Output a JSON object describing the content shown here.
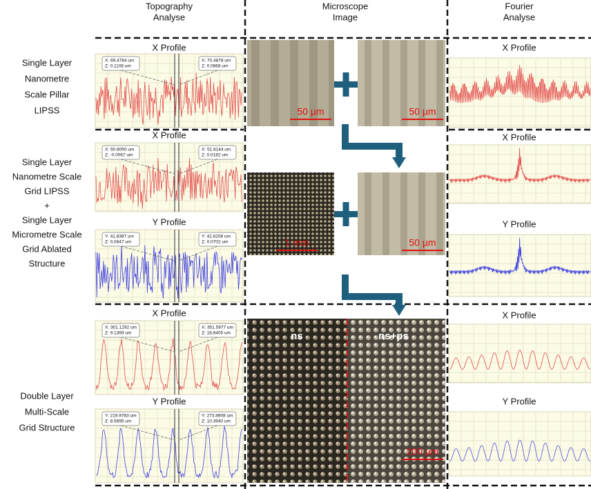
{
  "headers": [
    [
      "Topography",
      "Analyse"
    ],
    [
      "Microscope",
      "Image"
    ],
    [
      "Fourier",
      "Analyse"
    ]
  ],
  "rows": [
    {
      "label_lines": [
        "Single Layer",
        "Nanometre",
        "Scale Pillar",
        "LIPSS"
      ],
      "topography": [
        {
          "title": "X Profile",
          "cursors": [
            [
              "X: 69.4784 um",
              "Z: 0.1108 um"
            ],
            [
              "X: 70.4878 um",
              "Z: 0.0868 um"
            ]
          ]
        }
      ],
      "microscope": [
        "50 µm",
        "50 µm"
      ],
      "fourier": [
        "X Profile"
      ]
    },
    {
      "label_lines": [
        "Single Layer",
        "Nanometre Scale",
        "Grid LIPSS",
        "+",
        "Single Layer",
        "Micrometre Scale",
        "Grid Ablated",
        "Structure"
      ],
      "topography": [
        {
          "title": "X Profile",
          "cursors": [
            [
              "X: 50.8050 um",
              "Z: -0.0067 um"
            ],
            [
              "X: 51.8144 um",
              "Z: 0.0182 um"
            ]
          ]
        },
        {
          "title": "Y Profile",
          "cursors": [
            [
              "Y: 41.8387 um",
              "Z: 0.0847 um"
            ],
            [
              "Y: 42.8208 um",
              "Z: 0.0702 um"
            ]
          ]
        }
      ],
      "microscope": [
        "1 mm",
        "50 µm"
      ],
      "fourier": [
        "X Profile",
        "Y Profile"
      ]
    },
    {
      "label_lines": [
        "Double Layer",
        "Multi-Scale",
        "Grid Structure"
      ],
      "topography": [
        {
          "title": "X Profile",
          "cursors": [
            [
              "X: 301.1292 um",
              "Z: 9.1369 um"
            ],
            [
              "X: 351.5977 um",
              "Z: 18.8405 um"
            ]
          ]
        },
        {
          "title": "Y Profile",
          "cursors": [
            [
              "Y: 219.9783 um",
              "Z: 8.5695 um"
            ],
            [
              "Y: 273.8908 um",
              "Z: 10.3940 um"
            ]
          ]
        }
      ],
      "microscope": [
        "ns",
        "ns+ps",
        "200 µm"
      ],
      "fourier": [
        "X Profile",
        "Y Profile"
      ]
    }
  ]
}
